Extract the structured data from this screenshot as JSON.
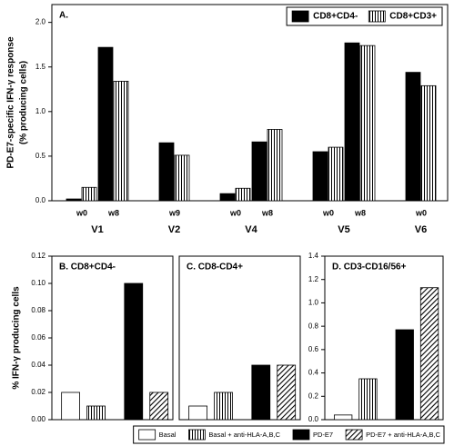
{
  "chart_data": [
    {
      "type": "bar",
      "title": "A.",
      "y_label": [
        "PD-E7-specific IFN-γ response",
        "(% producing cells)"
      ],
      "groups": [
        {
          "name": "V1",
          "categories": [
            "w0",
            "w8"
          ]
        },
        {
          "name": "V2",
          "categories": [
            "w9"
          ]
        },
        {
          "name": "V4",
          "categories": [
            "w0",
            "w8"
          ]
        },
        {
          "name": "V5",
          "categories": [
            "w0",
            "w8"
          ]
        },
        {
          "name": "V6",
          "categories": [
            "w0"
          ]
        }
      ],
      "series": [
        {
          "name": "CD8+CD4-",
          "color": "#000000",
          "pattern": "solid",
          "values": [
            0.02,
            1.72,
            0.65,
            0.08,
            0.66,
            0.55,
            1.77,
            1.44
          ]
        },
        {
          "name": "CD8+CD3+",
          "color": "#000000",
          "pattern": "vertical-stripes",
          "values": [
            0.15,
            1.34,
            0.51,
            0.14,
            0.8,
            0.6,
            1.74,
            1.29
          ]
        }
      ],
      "ylim": [
        0,
        2.2
      ],
      "yticks": [
        {
          "value": 0,
          "label": "0.0"
        },
        0.5,
        {
          "value": 1,
          "label": "1.0"
        },
        1.5,
        {
          "value": 2,
          "label": "2.0"
        }
      ],
      "legend": "upper right"
    },
    {
      "type": "bar",
      "title": "B. CD8+CD4-",
      "y_label": "% IFN-γ producing cells",
      "series": [
        {
          "name": "Basal",
          "color": "#ffffff",
          "pattern": "solid",
          "values": [
            0.02
          ]
        },
        {
          "name": "Basal + anti-HLA-A,B,C",
          "color": "#000000",
          "pattern": "vertical-stripes",
          "values": [
            0.01
          ]
        },
        {
          "name": "PD-E7",
          "color": "#000000",
          "pattern": "solid",
          "values": [
            0.1
          ]
        },
        {
          "name": "PD-E7 + anti-HLA-A,B,C",
          "color": "#000000",
          "pattern": "diagonal-hatch",
          "values": [
            0.02
          ]
        }
      ],
      "ylim": [
        0,
        0.12
      ],
      "yticks": [
        {
          "value": 0,
          "label": "0.00"
        },
        0.02,
        0.04,
        0.06,
        0.08,
        {
          "value": 0.1,
          "label": "0.10"
        },
        0.12
      ],
      "legend": "bottom"
    },
    {
      "type": "bar",
      "title": "C. CD8-CD4+",
      "series": [
        {
          "color": "#ffffff",
          "pattern": "solid",
          "values": [
            0.01
          ]
        },
        {
          "color": "#000000",
          "pattern": "vertical-stripes",
          "values": [
            0.02
          ]
        },
        {
          "color": "#000000",
          "pattern": "solid",
          "values": [
            0.04
          ]
        },
        {
          "color": "#000000",
          "pattern": "diagonal-hatch",
          "values": [
            0.04
          ]
        }
      ],
      "ylim": [
        0,
        0.12
      ]
    },
    {
      "type": "bar",
      "title": "D. CD3-CD16/56+",
      "series": [
        {
          "color": "#ffffff",
          "pattern": "solid",
          "values": [
            0.04
          ]
        },
        {
          "color": "#000000",
          "pattern": "vertical-stripes",
          "values": [
            0.35
          ]
        },
        {
          "color": "#000000",
          "pattern": "solid",
          "values": [
            0.77
          ]
        },
        {
          "color": "#000000",
          "pattern": "diagonal-hatch",
          "values": [
            1.13
          ]
        }
      ],
      "ylim": [
        0,
        1.4
      ],
      "yticks": [
        {
          "value": 0,
          "label": "0.0"
        },
        0.2,
        0.4,
        0.6,
        0.8,
        {
          "value": 1,
          "label": "1.0"
        },
        1.2,
        1.4
      ]
    }
  ]
}
